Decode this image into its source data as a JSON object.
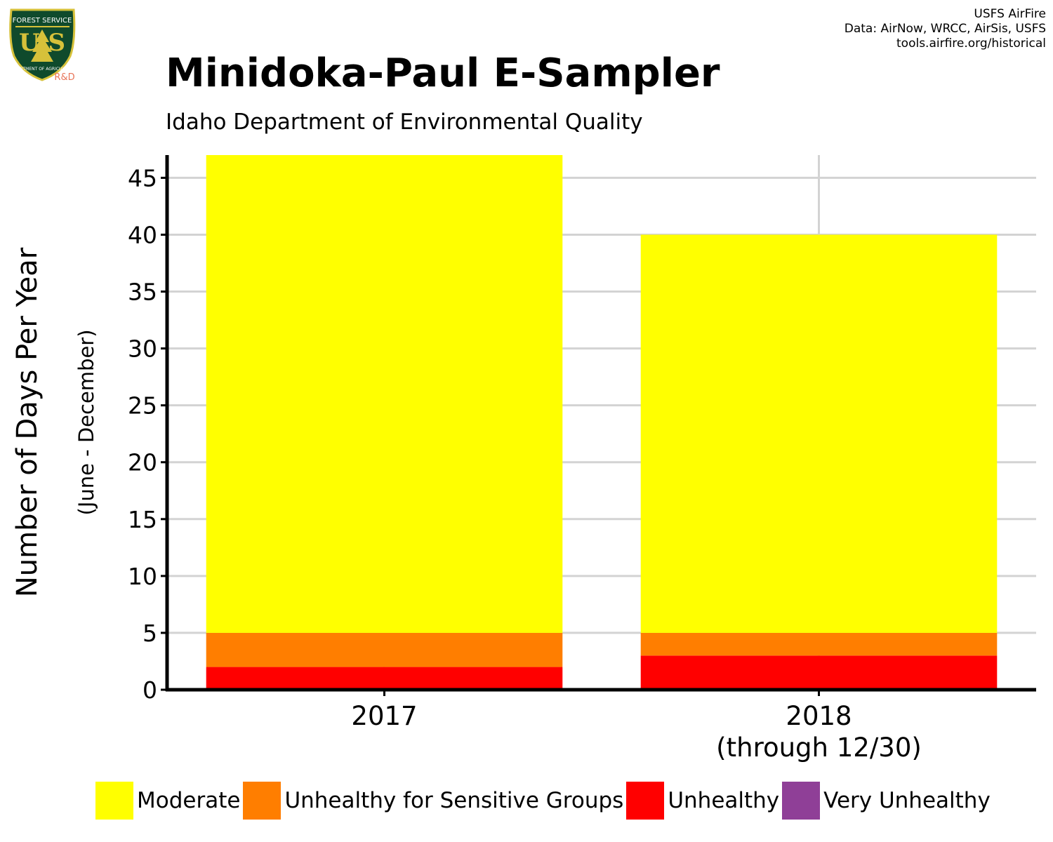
{
  "header": {
    "title": "Minidoka-Paul E-Sampler",
    "subtitle": "Idaho Department of Environmental Quality",
    "credits": [
      "USFS AirFire",
      "Data: AirNow, WRCC, AirSis, USFS",
      "tools.airfire.org/historical"
    ]
  },
  "logo": {
    "top_text": "FOREST SERVICE",
    "center_text": "U S",
    "bottom_text": "DEPARTMENT OF AGRICULTURE",
    "tag": "R&D"
  },
  "chart_data": {
    "type": "bar",
    "stacked": true,
    "categories": [
      "2017",
      "2018"
    ],
    "category_sublabels": [
      "",
      "(through 12/30)"
    ],
    "series": [
      {
        "name": "Very Unhealthy",
        "color": "#8F3F97",
        "values": [
          0,
          0
        ]
      },
      {
        "name": "Unhealthy",
        "color": "#FF0000",
        "values": [
          2,
          3
        ]
      },
      {
        "name": "Unhealthy for Sensitive Groups",
        "color": "#FF7E00",
        "values": [
          3,
          2
        ]
      },
      {
        "name": "Moderate",
        "color": "#FFFF00",
        "values": [
          42,
          35
        ]
      }
    ],
    "legend_order": [
      "Moderate",
      "Unhealthy for Sensitive Groups",
      "Unhealthy",
      "Very Unhealthy"
    ],
    "ylabel": "Number of Days Per Year",
    "ylabel_sub": "(June - December)",
    "xlabel": "",
    "ylim": [
      0,
      47
    ],
    "yticks": [
      0,
      5,
      10,
      15,
      20,
      25,
      30,
      35,
      40,
      45
    ],
    "grid": true,
    "legend_position": "bottom"
  }
}
